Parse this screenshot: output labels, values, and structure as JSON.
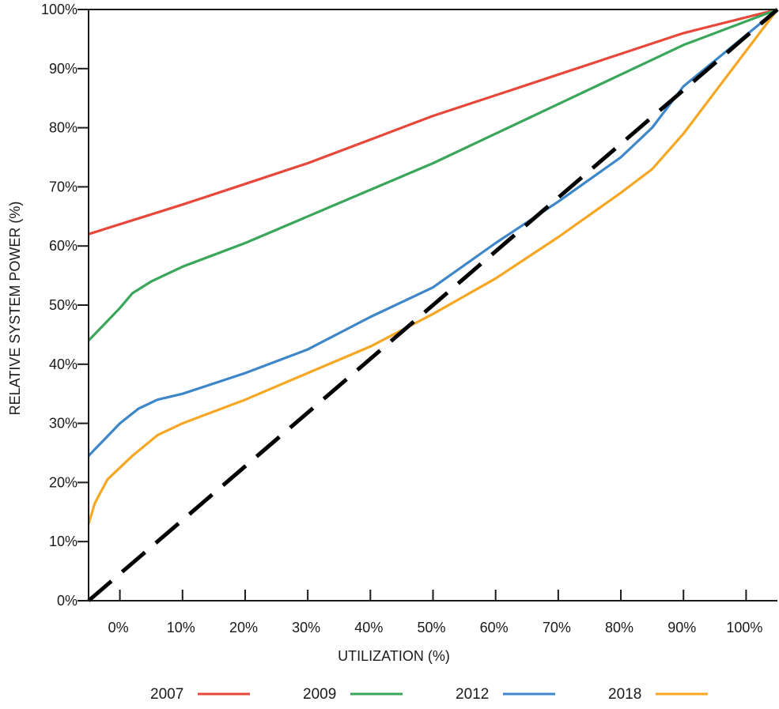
{
  "chart_data": {
    "type": "line",
    "xlabel": "UTILIZATION (%)",
    "ylabel": "RELATIVE SYSTEM POWER (%)",
    "xlim": [
      -5,
      105
    ],
    "ylim": [
      0,
      100
    ],
    "x_ticks": [
      0,
      10,
      20,
      30,
      40,
      50,
      60,
      70,
      80,
      90,
      100
    ],
    "x_tick_labels": [
      "0%",
      "10%",
      "20%",
      "30%",
      "40%",
      "50%",
      "60%",
      "70%",
      "80%",
      "90%",
      "100%"
    ],
    "y_ticks": [
      0,
      10,
      20,
      30,
      40,
      50,
      60,
      70,
      80,
      90,
      100
    ],
    "y_tick_labels": [
      "0%",
      "10%",
      "20%",
      "30%",
      "40%",
      "50%",
      "60%",
      "70%",
      "80%",
      "90%",
      "100%"
    ],
    "grid": false,
    "legend_position": "bottom",
    "series": [
      {
        "name": "2007",
        "color": "#e8473a",
        "style": "solid",
        "points": [
          [
            -5,
            62
          ],
          [
            10,
            67
          ],
          [
            20,
            70.5
          ],
          [
            30,
            74
          ],
          [
            40,
            78
          ],
          [
            50,
            82
          ],
          [
            60,
            85.5
          ],
          [
            70,
            89
          ],
          [
            80,
            92.5
          ],
          [
            90,
            96
          ],
          [
            105,
            100
          ]
        ]
      },
      {
        "name": "2009",
        "color": "#3aa65a",
        "style": "solid",
        "points": [
          [
            -5,
            44
          ],
          [
            0,
            49.5
          ],
          [
            2,
            52
          ],
          [
            5,
            54
          ],
          [
            10,
            56.5
          ],
          [
            20,
            60.5
          ],
          [
            30,
            65
          ],
          [
            40,
            69.5
          ],
          [
            50,
            74
          ],
          [
            60,
            79
          ],
          [
            70,
            84
          ],
          [
            80,
            89
          ],
          [
            90,
            94
          ],
          [
            105,
            100
          ]
        ]
      },
      {
        "name": "2012",
        "color": "#3d86c8",
        "style": "solid",
        "points": [
          [
            -5,
            24.5
          ],
          [
            0,
            30
          ],
          [
            3,
            32.5
          ],
          [
            6,
            34
          ],
          [
            10,
            35
          ],
          [
            20,
            38.5
          ],
          [
            30,
            42.5
          ],
          [
            40,
            48
          ],
          [
            50,
            53
          ],
          [
            60,
            60.5
          ],
          [
            70,
            67.5
          ],
          [
            80,
            75
          ],
          [
            85,
            80
          ],
          [
            90,
            87
          ],
          [
            105,
            100
          ]
        ]
      },
      {
        "name": "2018",
        "color": "#f5a623",
        "style": "solid",
        "points": [
          [
            -5,
            13
          ],
          [
            -4,
            16.5
          ],
          [
            -2,
            20.5
          ],
          [
            2,
            24.5
          ],
          [
            6,
            28
          ],
          [
            10,
            30
          ],
          [
            20,
            34
          ],
          [
            30,
            38.5
          ],
          [
            40,
            43
          ],
          [
            50,
            48.5
          ],
          [
            60,
            54.5
          ],
          [
            70,
            61.5
          ],
          [
            80,
            69
          ],
          [
            85,
            73
          ],
          [
            90,
            79
          ],
          [
            95,
            86
          ],
          [
            105,
            100
          ]
        ]
      },
      {
        "name": "",
        "color": "#000000",
        "style": "dashed",
        "points": [
          [
            -5,
            0
          ],
          [
            105,
            100
          ]
        ]
      }
    ]
  }
}
